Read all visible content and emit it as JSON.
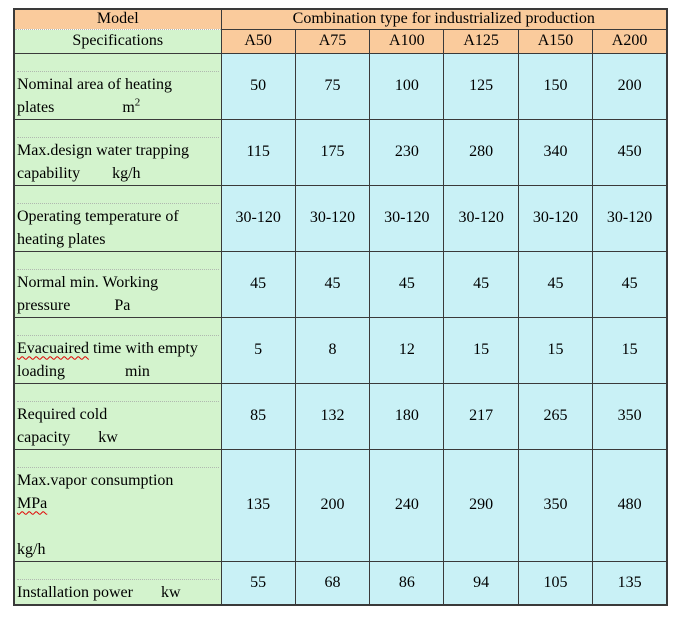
{
  "colors": {
    "header_fill": "#facb9c",
    "label_fill": "#d3f3cd",
    "value_fill": "#c9f1f6",
    "border": "#3a3a3a",
    "dotted": "#b0b8b0",
    "misspell": "#e00000"
  },
  "table": {
    "model_label": "Model",
    "specifications_label": "Specifications",
    "combination_label": "Combination type for industrialized production",
    "columns": [
      "A50",
      "A75",
      "A100",
      "A125",
      "A150",
      "A200"
    ],
    "rows": [
      {
        "name": "nominal-area",
        "lines": [
          {
            "segments": [
              {
                "t": "Nominal area of heating"
              }
            ]
          },
          {
            "segments": [
              {
                "t": "plates                 m"
              },
              {
                "t": "2",
                "sup": true
              }
            ]
          }
        ],
        "values": [
          "50",
          "75",
          "100",
          "125",
          "150",
          "200"
        ]
      },
      {
        "name": "water-trapping",
        "lines": [
          {
            "segments": [
              {
                "t": "Max.design water trapping"
              }
            ]
          },
          {
            "segments": [
              {
                "t": "capability        kg/h"
              }
            ]
          }
        ],
        "values": [
          "115",
          "175",
          "230",
          "280",
          "340",
          "450"
        ]
      },
      {
        "name": "operating-temperature",
        "lines": [
          {
            "segments": [
              {
                "t": "Operating temperature of"
              }
            ]
          },
          {
            "segments": [
              {
                "t": "heating plates"
              }
            ]
          }
        ],
        "values": [
          "30-120",
          "30-120",
          "30-120",
          "30-120",
          "30-120",
          "30-120"
        ]
      },
      {
        "name": "working-pressure",
        "lines": [
          {
            "segments": [
              {
                "t": "Normal min. Working"
              }
            ]
          },
          {
            "segments": [
              {
                "t": "pressure           Pa"
              }
            ]
          }
        ],
        "values": [
          "45",
          "45",
          "45",
          "45",
          "45",
          "45"
        ]
      },
      {
        "name": "evacuation-time",
        "lines": [
          {
            "segments": [
              {
                "t": "Evacuaired",
                "misspelled": true
              },
              {
                "t": " time with empty"
              }
            ]
          },
          {
            "segments": [
              {
                "t": "loading               min"
              }
            ]
          }
        ],
        "values": [
          "5",
          "8",
          "12",
          "15",
          "15",
          "15"
        ]
      },
      {
        "name": "cold-capacity",
        "lines": [
          {
            "segments": [
              {
                "t": "Required cold"
              }
            ]
          },
          {
            "segments": [
              {
                "t": "capacity       kw"
              }
            ]
          }
        ],
        "values": [
          "85",
          "132",
          "180",
          "217",
          "265",
          "350"
        ]
      },
      {
        "name": "vapor-consumption",
        "lines": [
          {
            "segments": [
              {
                "t": "Max.vapor consumption"
              }
            ]
          },
          {
            "segments": [
              {
                "t": "MPa",
                "misspelled": true
              }
            ]
          },
          {
            "segments": []
          },
          {
            "segments": [
              {
                "t": "kg/h"
              }
            ]
          }
        ],
        "values": [
          "135",
          "200",
          "240",
          "290",
          "350",
          "480"
        ]
      },
      {
        "name": "installation-power",
        "lines": [
          {
            "segments": [
              {
                "t": "Installation power       kw"
              }
            ]
          }
        ],
        "values": [
          "55",
          "68",
          "86",
          "94",
          "105",
          "135"
        ]
      }
    ]
  }
}
